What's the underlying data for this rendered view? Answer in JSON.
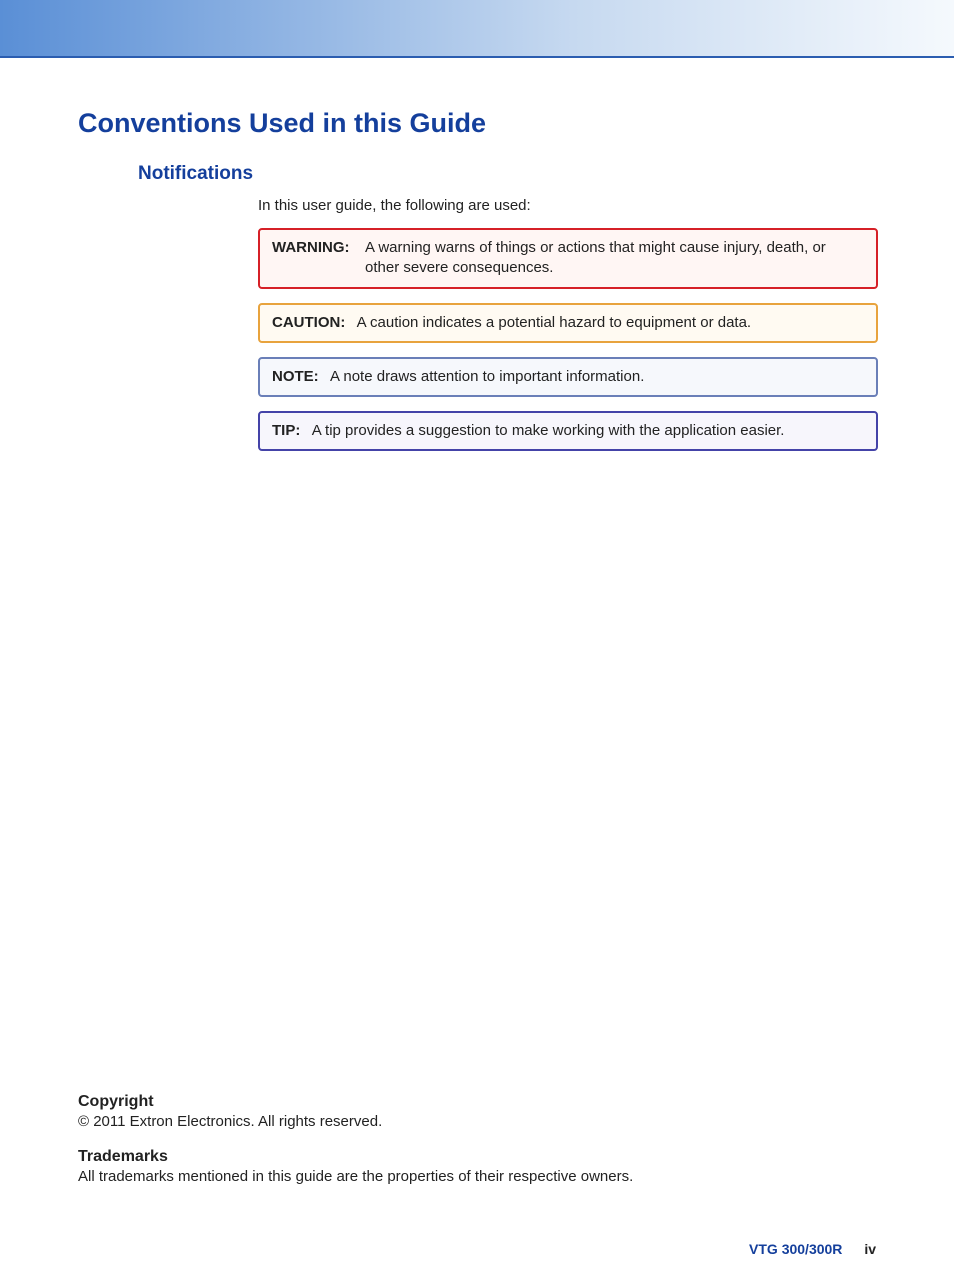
{
  "header": {
    "gradient_start": "#5a8fd6",
    "gradient_mid": "#c6d9f0",
    "gradient_end": "#f5f9fd",
    "line_color": "#2b5db0"
  },
  "title": "Conventions Used in this Guide",
  "subtitle": "Notifications",
  "intro": "In this user guide, the following are used:",
  "callouts": {
    "warning": {
      "label": "WARNING:",
      "text": "A warning warns of things or actions that might cause injury, death, or other severe consequences.",
      "border_color": "#d62027",
      "bg_color": "#fff6f4"
    },
    "caution": {
      "label": "CAUTION:",
      "text": "A caution indicates a potential hazard to equipment or data.",
      "border_color": "#e8a33d",
      "bg_color": "#fffaf2"
    },
    "note": {
      "label": "NOTE:",
      "text": "A note draws attention to important information.",
      "border_color": "#6a7fb8",
      "bg_color": "#f6f8fc"
    },
    "tip": {
      "label": "TIP:",
      "text": "A tip provides a suggestion to make working with the application easier.",
      "border_color": "#4443a8",
      "bg_color": "#f7f6fc"
    }
  },
  "footer": {
    "copyright_heading": "Copyright",
    "copyright_text": "© 2011  Extron Electronics. All rights reserved.",
    "trademarks_heading": "Trademarks",
    "trademarks_text": "All trademarks mentioned in this guide are the properties of their respective owners."
  },
  "page_footer": {
    "model": "VTG 300/300R",
    "page": "iv"
  },
  "colors": {
    "heading_blue": "#143f9c",
    "body_text": "#1a1a1a"
  },
  "typography": {
    "h1_size_pt": 20,
    "h2_size_pt": 14,
    "body_size_pt": 11
  }
}
